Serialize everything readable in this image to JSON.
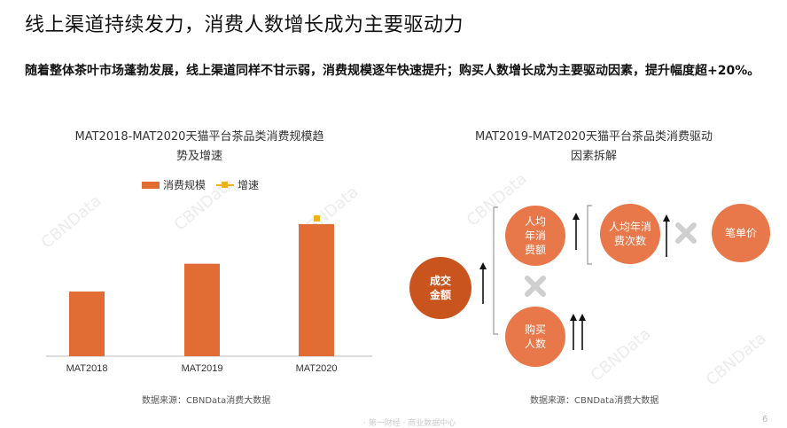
{
  "page": {
    "title": "线上渠道持续发力，消费人数增长成为主要驱动力",
    "subtitle": "随着整体茶叶市场蓬勃发展，线上渠道同样不甘示弱，消费规模逐年快速提升；购买人数增长成为主要驱动因素，提升幅度超+20%。",
    "watermark": "CBNData",
    "footer": "· 第一财经 · 商业数据中心",
    "page_number": "6"
  },
  "left_chart": {
    "title_line1": "MAT2018-MAT2020天猫平台茶品类消费规模趋",
    "title_line2": "势及增速",
    "legend_bar": "消费规模",
    "legend_line": "增速",
    "source": "数据来源：CBNData消费大数据"
  },
  "right_chart": {
    "title_line1": "MAT2019-MAT2020天猫平台茶品类消费驱动",
    "title_line2": "因素拆解",
    "source": "数据来源：CBNData消费大数据",
    "nodes": {
      "gmv": "成交金额",
      "spend_per_buyer": "人均年消费额",
      "buyers": "购买人数",
      "frequency": "人均年消费次数",
      "avg_order": "笔单价"
    },
    "multiply_icon": "times-icon",
    "arrows": {
      "gmv": "up-1",
      "spend_per_buyer": "up-1",
      "frequency": "up-1",
      "buyers": "up-2"
    }
  },
  "colors": {
    "bar": "#e16d35",
    "growth": "#f0b21a",
    "dark_circle": "#c9541d",
    "light_circle": "#e8784a",
    "multiply": "#cfcfcf"
  },
  "chart_data": {
    "type": "bar",
    "categories": [
      "MAT2018",
      "MAT2019",
      "MAT2020"
    ],
    "series": [
      {
        "name": "消费规模",
        "values": [
          49,
          70,
          100
        ]
      }
    ],
    "ylim": [
      0,
      110
    ],
    "grid": false,
    "legend": "top"
  }
}
